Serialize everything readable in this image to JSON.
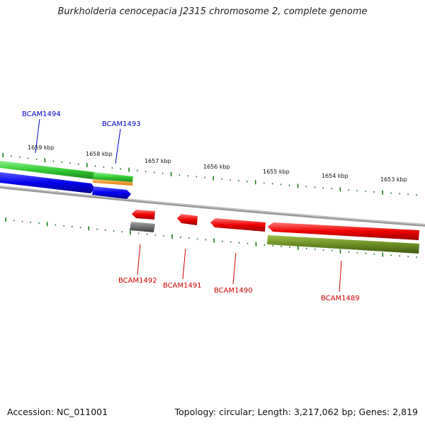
{
  "title": "Burkholderia cenocepacia J2315 chromosome 2, complete genome",
  "footer": {
    "accession": "Accession: NC_011001",
    "summary": "Topology: circular; Length: 3,217,062 bp; Genes: 2,819"
  },
  "colors": {
    "forward_label": "#0000cc",
    "reverse_label": "#cc0000",
    "tick": "#1a7a1a",
    "backbone": "#888888",
    "forward_gene": "#0000ee",
    "reverse_gene": "#ee0000",
    "green_feature": "#33cc33",
    "olive_feature": "#6b8e23",
    "orange_feature": "#ff8c00",
    "gray_feature": "#666666"
  },
  "scale": {
    "labels": [
      "1659 kbp",
      "1658 kbp",
      "1657 kbp",
      "1656 kbp",
      "1655 kbp",
      "1654 kbp",
      "1653 kbp"
    ]
  },
  "genes": [
    {
      "name": "BCAM1494",
      "strand": "forward"
    },
    {
      "name": "BCAM1493",
      "strand": "forward"
    },
    {
      "name": "BCAM1492",
      "strand": "reverse"
    },
    {
      "name": "BCAM1491",
      "strand": "reverse"
    },
    {
      "name": "BCAM1490",
      "strand": "reverse"
    },
    {
      "name": "BCAM1489",
      "strand": "reverse"
    }
  ]
}
